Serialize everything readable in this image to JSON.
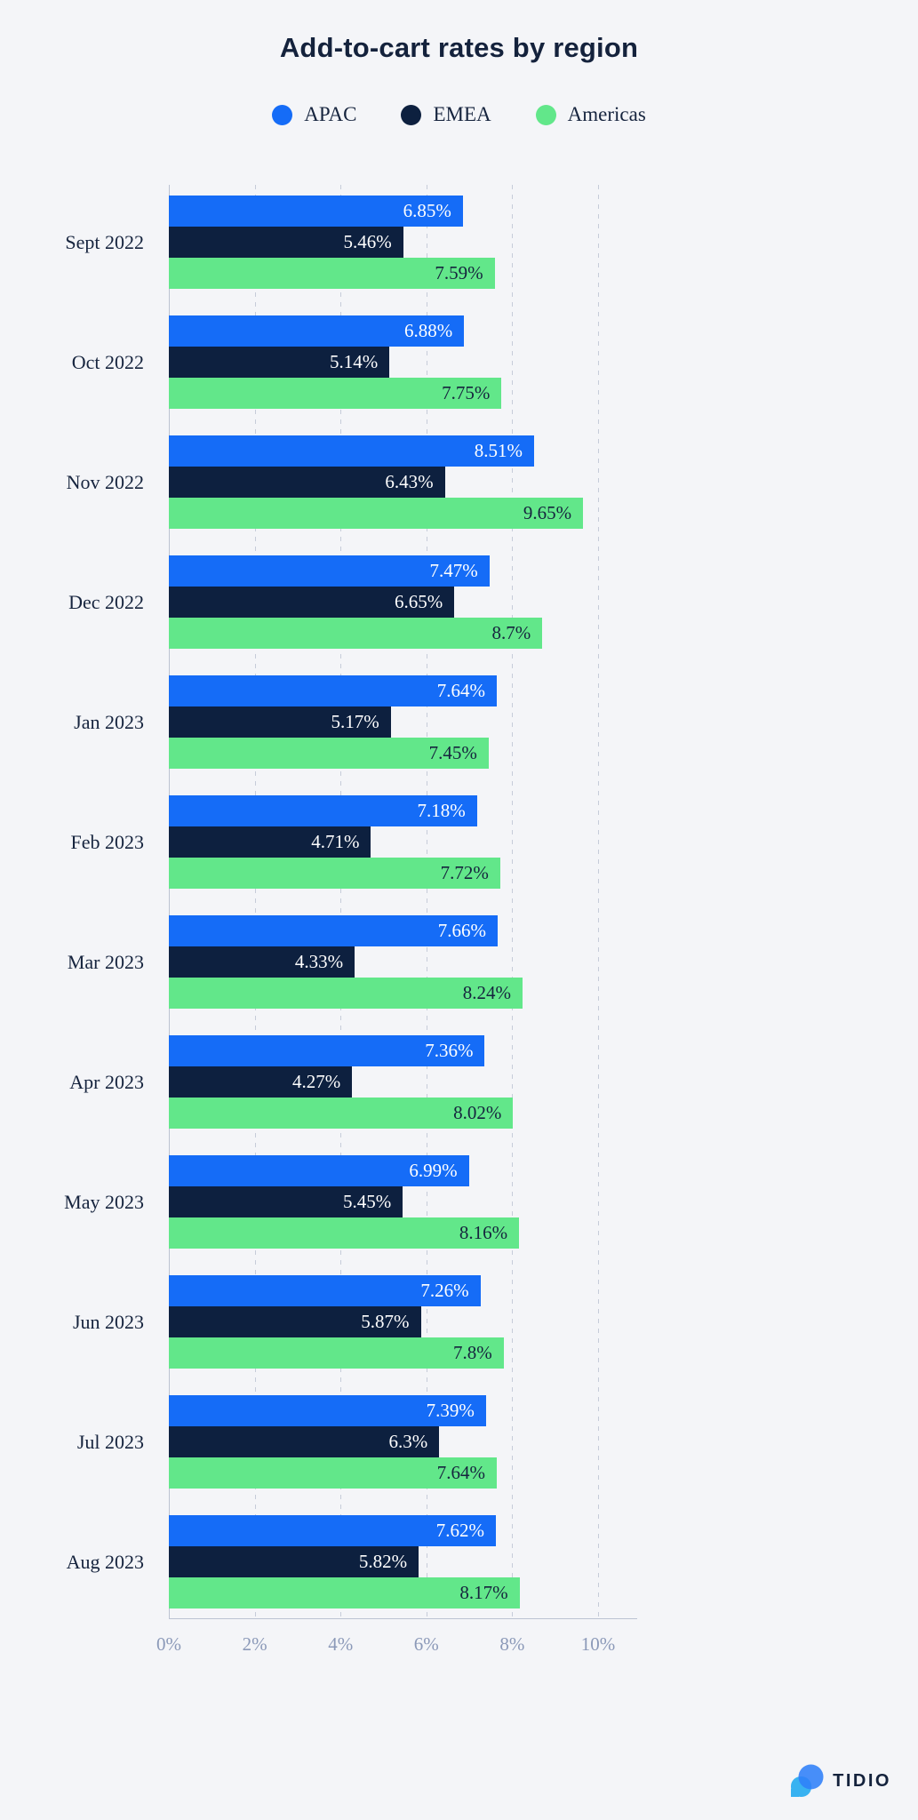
{
  "title": "Add-to-cart rates by region",
  "legend": {
    "items": [
      {
        "label": "APAC",
        "color": "#156cf7"
      },
      {
        "label": "EMEA",
        "color": "#0d203f"
      },
      {
        "label": "Americas",
        "color": "#62e78a"
      }
    ]
  },
  "chart_data": {
    "type": "bar",
    "orientation": "horizontal",
    "title": "Add-to-cart rates by region",
    "categories": [
      "Sept 2022",
      "Oct 2022",
      "Nov 2022",
      "Dec 2022",
      "Jan 2023",
      "Feb 2023",
      "Mar 2023",
      "Apr 2023",
      "May 2023",
      "Jun 2023",
      "Jul 2023",
      "Aug 2023"
    ],
    "series": [
      {
        "name": "APAC",
        "color": "#156cf7",
        "label_color": "#ffffff",
        "values": [
          6.85,
          6.88,
          8.51,
          7.47,
          7.64,
          7.18,
          7.66,
          7.36,
          6.99,
          7.26,
          7.39,
          7.62
        ]
      },
      {
        "name": "EMEA",
        "color": "#0d203f",
        "label_color": "#ffffff",
        "values": [
          5.46,
          5.14,
          6.43,
          6.65,
          5.17,
          4.71,
          4.33,
          4.27,
          5.45,
          5.87,
          6.3,
          5.82
        ]
      },
      {
        "name": "Americas",
        "color": "#62e78a",
        "label_color": "#16243e",
        "values": [
          7.59,
          7.75,
          9.65,
          8.7,
          7.45,
          7.72,
          8.24,
          8.02,
          8.16,
          7.8,
          7.64,
          8.17
        ]
      }
    ],
    "value_label_suffix": "%",
    "x_ticks": [
      "0%",
      "2%",
      "4%",
      "6%",
      "8%",
      "10%"
    ],
    "x_tick_values": [
      0,
      2,
      4,
      6,
      8,
      10
    ],
    "xlim": [
      0,
      10.9
    ],
    "grid": "vertical-dashed",
    "legend_position": "top"
  },
  "footer": {
    "brand": "TIDIO"
  },
  "colors": {
    "background": "#f4f5f8",
    "text": "#16243e",
    "tick_label": "#8b99b8",
    "gridline": "#c6ccd9",
    "axis": "#bcc3d2",
    "logo_blue": "#2f80f8",
    "logo_light_blue": "#38b2f1"
  }
}
